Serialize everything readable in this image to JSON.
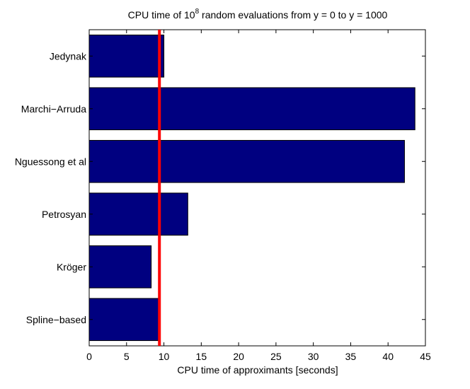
{
  "chart_data": {
    "type": "bar",
    "orientation": "horizontal",
    "title": {
      "before": "CPU time of 10",
      "superscript": "8",
      "after": " random evaluations from y = 0 to y = 1000"
    },
    "xlabel": "CPU time of approximants [seconds]",
    "ylabel": "",
    "categories": [
      "Jedynak",
      "Marchi−Arruda",
      "Nguessong et al",
      "Petrosyan",
      "Kröger",
      "Spline−based"
    ],
    "values": [
      10.0,
      43.6,
      42.2,
      13.2,
      8.3,
      9.4
    ],
    "xlim": [
      0,
      45
    ],
    "xticks": [
      0,
      5,
      10,
      15,
      20,
      25,
      30,
      35,
      40,
      45
    ],
    "reference_line_x": 9.4,
    "grid": false,
    "legend": "none",
    "colors": {
      "bar_fill": "#000080",
      "bar_edge": "#000000",
      "reference_line": "#ff0000",
      "axes": "#000000",
      "background": "#ffffff"
    }
  }
}
